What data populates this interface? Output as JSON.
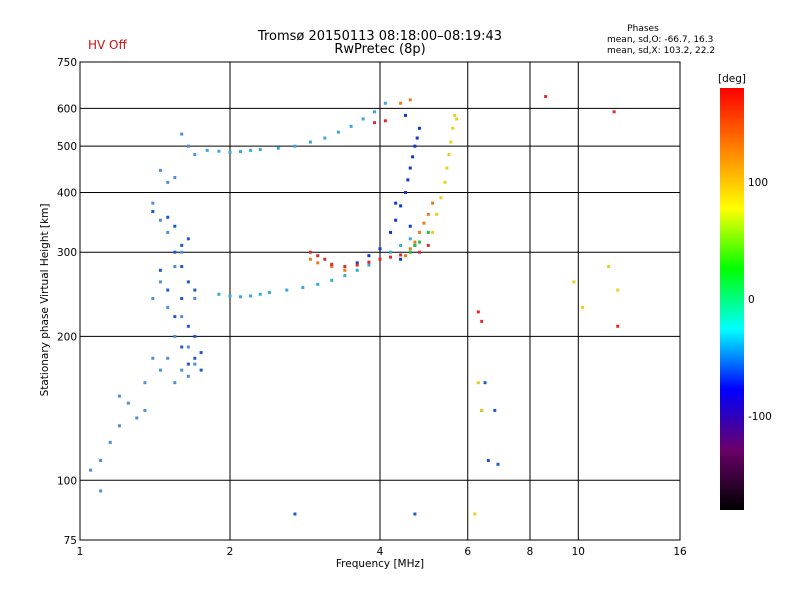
{
  "header": {
    "status": "HV Off",
    "title_line1": "Tromsø 20150113 08:18:00–08:19:43",
    "title_line2": "RwPretec (8p)",
    "stats_title": "Phases",
    "stats_o": "mean, sd,O: -66.7, 16.3",
    "stats_x": "mean, sd,X: 103.2, 22.2"
  },
  "chart_data": {
    "type": "scatter",
    "xlabel": "Frequency [MHz]",
    "ylabel": "Stationary phase Virtual Height [km]",
    "xscale": "log",
    "yscale": "log",
    "xlim": [
      1,
      16
    ],
    "ylim": [
      75,
      750
    ],
    "xticks": [
      1,
      2,
      4,
      6,
      8,
      10,
      16
    ],
    "yticks": [
      75,
      100,
      200,
      300,
      400,
      500,
      600,
      750
    ],
    "colorbar": {
      "label": "[deg]",
      "range": [
        -180,
        180
      ],
      "ticks": [
        100,
        0,
        -100
      ],
      "colors": [
        "#ff0000",
        "#ff8000",
        "#ffff00",
        "#00ff00",
        "#00ffff",
        "#0000ff",
        "#6a006a",
        "#000000"
      ]
    },
    "series": [
      {
        "color": "#4f8fd6",
        "points": [
          [
            1.45,
            445
          ],
          [
            1.5,
            420
          ],
          [
            1.55,
            430
          ],
          [
            1.6,
            530
          ],
          [
            1.65,
            500
          ],
          [
            1.7,
            480
          ],
          [
            1.4,
            380
          ],
          [
            1.45,
            350
          ],
          [
            1.5,
            330
          ],
          [
            1.6,
            300
          ],
          [
            1.55,
            280
          ],
          [
            1.45,
            260
          ],
          [
            1.4,
            240
          ],
          [
            1.5,
            230
          ],
          [
            1.6,
            220
          ],
          [
            1.7,
            240
          ],
          [
            1.55,
            200
          ],
          [
            1.65,
            190
          ],
          [
            1.5,
            180
          ],
          [
            1.7,
            175
          ],
          [
            1.6,
            170
          ],
          [
            1.55,
            160
          ],
          [
            1.65,
            165
          ],
          [
            1.45,
            170
          ],
          [
            1.4,
            180
          ],
          [
            1.35,
            160
          ],
          [
            1.35,
            140
          ],
          [
            1.3,
            135
          ],
          [
            1.2,
            130
          ],
          [
            1.15,
            120
          ],
          [
            1.1,
            110
          ],
          [
            1.05,
            105
          ],
          [
            1.1,
            95
          ],
          [
            1.2,
            150
          ],
          [
            1.25,
            145
          ]
        ]
      },
      {
        "color": "#1a5bd0",
        "points": [
          [
            1.55,
            300
          ],
          [
            1.6,
            280
          ],
          [
            1.65,
            260
          ],
          [
            1.7,
            250
          ],
          [
            1.6,
            240
          ],
          [
            1.55,
            220
          ],
          [
            1.65,
            210
          ],
          [
            1.7,
            200
          ],
          [
            1.6,
            190
          ],
          [
            1.75,
            185
          ],
          [
            1.7,
            180
          ],
          [
            1.65,
            175
          ],
          [
            1.75,
            170
          ],
          [
            1.5,
            250
          ],
          [
            1.45,
            275
          ],
          [
            1.6,
            310
          ],
          [
            1.65,
            320
          ],
          [
            1.55,
            340
          ],
          [
            1.5,
            355
          ],
          [
            1.4,
            365
          ],
          [
            2.7,
            85
          ],
          [
            4.7,
            85
          ],
          [
            6.4,
            140
          ],
          [
            6.5,
            160
          ],
          [
            6.6,
            110
          ],
          [
            6.8,
            140
          ],
          [
            6.9,
            108
          ]
        ]
      },
      {
        "color": "#3aa8d8",
        "points": [
          [
            1.9,
            245
          ],
          [
            2.0,
            243
          ],
          [
            2.1,
            242
          ],
          [
            2.2,
            243
          ],
          [
            2.3,
            245
          ],
          [
            2.4,
            247
          ],
          [
            2.6,
            250
          ],
          [
            2.8,
            253
          ],
          [
            3.0,
            257
          ],
          [
            3.2,
            262
          ],
          [
            3.4,
            268
          ],
          [
            3.6,
            275
          ],
          [
            3.8,
            282
          ],
          [
            4.0,
            290
          ],
          [
            4.2,
            300
          ],
          [
            4.4,
            310
          ],
          [
            4.6,
            320
          ],
          [
            1.8,
            490
          ],
          [
            1.9,
            488
          ],
          [
            2.0,
            485
          ],
          [
            2.1,
            487
          ],
          [
            2.2,
            490
          ],
          [
            2.3,
            492
          ],
          [
            2.5,
            495
          ],
          [
            2.7,
            500
          ],
          [
            2.9,
            510
          ],
          [
            3.1,
            520
          ],
          [
            3.3,
            535
          ],
          [
            3.5,
            550
          ],
          [
            3.7,
            570
          ],
          [
            3.9,
            590
          ],
          [
            4.1,
            615
          ]
        ]
      },
      {
        "color": "#0b39c8",
        "points": [
          [
            3.6,
            285
          ],
          [
            3.8,
            295
          ],
          [
            4.0,
            305
          ],
          [
            4.2,
            330
          ],
          [
            4.3,
            350
          ],
          [
            4.4,
            375
          ],
          [
            4.5,
            400
          ],
          [
            4.55,
            425
          ],
          [
            4.6,
            450
          ],
          [
            4.65,
            475
          ],
          [
            4.7,
            500
          ],
          [
            4.75,
            520
          ],
          [
            4.8,
            545
          ],
          [
            4.5,
            580
          ],
          [
            4.3,
            380
          ],
          [
            4.6,
            340
          ],
          [
            4.7,
            310
          ],
          [
            4.4,
            290
          ]
        ]
      },
      {
        "color": "#e8d020",
        "points": [
          [
            5.1,
            330
          ],
          [
            5.2,
            360
          ],
          [
            5.3,
            390
          ],
          [
            5.4,
            420
          ],
          [
            5.45,
            450
          ],
          [
            5.5,
            480
          ],
          [
            5.55,
            510
          ],
          [
            5.6,
            545
          ],
          [
            5.65,
            580
          ],
          [
            5.7,
            570
          ],
          [
            6.3,
            160
          ],
          [
            6.4,
            140
          ],
          [
            6.2,
            85
          ],
          [
            9.8,
            260
          ],
          [
            10.2,
            230
          ],
          [
            11.5,
            280
          ],
          [
            12.0,
            250
          ]
        ]
      },
      {
        "color": "#f07a1a",
        "points": [
          [
            4.5,
            295
          ],
          [
            4.6,
            305
          ],
          [
            4.7,
            315
          ],
          [
            4.8,
            330
          ],
          [
            4.9,
            345
          ],
          [
            5.0,
            360
          ],
          [
            5.1,
            380
          ],
          [
            4.4,
            615
          ],
          [
            4.6,
            625
          ],
          [
            3.4,
            275
          ],
          [
            3.2,
            280
          ],
          [
            3.0,
            285
          ],
          [
            2.9,
            290
          ]
        ]
      },
      {
        "color": "#e02a2a",
        "points": [
          [
            2.9,
            300
          ],
          [
            3.0,
            295
          ],
          [
            3.1,
            290
          ],
          [
            3.2,
            283
          ],
          [
            3.4,
            280
          ],
          [
            3.6,
            282
          ],
          [
            3.8,
            286
          ],
          [
            4.0,
            290
          ],
          [
            4.2,
            293
          ],
          [
            4.4,
            296
          ],
          [
            4.8,
            300
          ],
          [
            5.0,
            310
          ],
          [
            3.9,
            560
          ],
          [
            4.1,
            565
          ],
          [
            6.3,
            225
          ],
          [
            6.4,
            215
          ],
          [
            8.6,
            635
          ],
          [
            11.8,
            590
          ],
          [
            12.0,
            210
          ]
        ]
      },
      {
        "color": "#20c040",
        "points": [
          [
            4.6,
            300
          ],
          [
            4.8,
            315
          ],
          [
            5.0,
            330
          ],
          [
            4.7,
            310
          ]
        ]
      }
    ]
  }
}
